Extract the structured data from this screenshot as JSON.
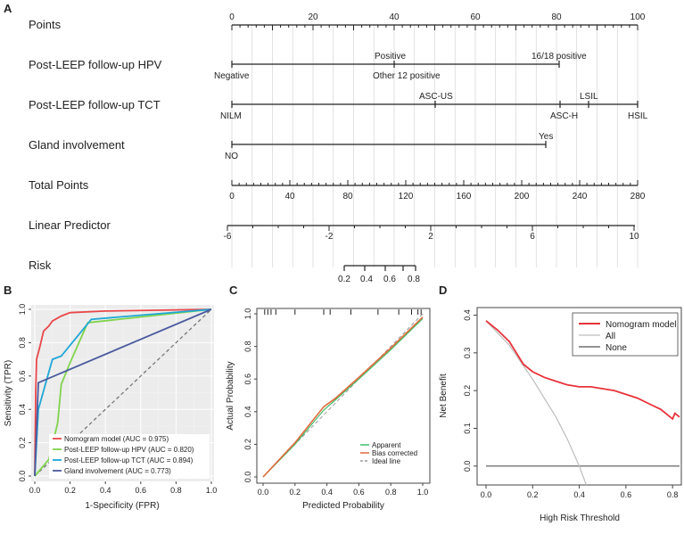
{
  "panel_labels": {
    "a": "A",
    "b": "B",
    "c": "C",
    "d": "D"
  },
  "nomogram": {
    "rows": {
      "points": "Points",
      "hpv": "Post-LEEP follow-up HPV",
      "tct": "Post-LEEP follow-up TCT",
      "gland": "Gland involvement",
      "total": "Total Points",
      "linear": "Linear Predictor",
      "risk": "Risk"
    },
    "points_ticks": [
      "0",
      "20",
      "40",
      "60",
      "80",
      "100"
    ],
    "hpv_labels": {
      "negative": "Negative",
      "positive": "Positive",
      "other12": "Other 12 positive",
      "hpv1618": "16/18 positive"
    },
    "tct_labels": {
      "nilm": "NILM",
      "ascus": "ASC-US",
      "asch": "ASC-H",
      "lsil": "LSIL",
      "hsil": "HSIL"
    },
    "gland_labels": {
      "no": "NO",
      "yes": "Yes"
    },
    "total_ticks": [
      "0",
      "40",
      "80",
      "120",
      "160",
      "200",
      "240",
      "280"
    ],
    "linear_ticks": [
      "-6",
      "-2",
      "2",
      "6",
      "10"
    ],
    "risk_ticks": [
      "0.2",
      "0.4",
      "0.6",
      "0.8"
    ]
  },
  "chart_data": [
    {
      "panel": "B",
      "type": "line",
      "xlabel": "1-Specificity (FPR)",
      "ylabel": "Sensitivity (TPR)",
      "xlim": [
        0,
        1
      ],
      "ylim": [
        0,
        1
      ],
      "xticks": [
        "0.0",
        "0.2",
        "0.4",
        "0.6",
        "0.8",
        "1.0"
      ],
      "yticks": [
        "0.0",
        "0.2",
        "0.4",
        "0.6",
        "0.8",
        "1.0"
      ],
      "legend_position": "bottom-right",
      "series": [
        {
          "name": "Nomogram model (AUC = 0.975)",
          "color": "#e8474a",
          "points": [
            [
              0,
              0
            ],
            [
              0.005,
              0.5
            ],
            [
              0.01,
              0.7
            ],
            [
              0.03,
              0.78
            ],
            [
              0.05,
              0.87
            ],
            [
              0.08,
              0.9
            ],
            [
              0.1,
              0.93
            ],
            [
              0.15,
              0.96
            ],
            [
              0.2,
              0.98
            ],
            [
              0.4,
              0.99
            ],
            [
              1,
              1
            ]
          ]
        },
        {
          "name": "Post-LEEP follow-up HPV (AUC = 0.820)",
          "color": "#7fd44c",
          "points": [
            [
              0,
              0
            ],
            [
              0.08,
              0.1
            ],
            [
              0.13,
              0.32
            ],
            [
              0.15,
              0.55
            ],
            [
              0.2,
              0.68
            ],
            [
              0.3,
              0.92
            ],
            [
              1,
              1
            ]
          ]
        },
        {
          "name": "Post-LEEP follow-up TCT (AUC = 0.894)",
          "color": "#1fa7d6",
          "points": [
            [
              0,
              0
            ],
            [
              0.02,
              0.4
            ],
            [
              0.1,
              0.7
            ],
            [
              0.15,
              0.72
            ],
            [
              0.32,
              0.94
            ],
            [
              1,
              1
            ]
          ]
        },
        {
          "name": "Gland involvement (AUC = 0.773)",
          "color": "#4a5a9e",
          "points": [
            [
              0,
              0
            ],
            [
              0.02,
              0.56
            ],
            [
              1,
              1
            ]
          ]
        }
      ],
      "reference_line": [
        [
          0,
          0
        ],
        [
          1,
          1
        ]
      ]
    },
    {
      "panel": "C",
      "type": "line",
      "xlabel": "Predicted Probability",
      "ylabel": "Actual Probability",
      "xlim": [
        0,
        1
      ],
      "ylim": [
        0,
        1
      ],
      "xticks": [
        "0.0",
        "0.2",
        "0.4",
        "0.6",
        "0.8",
        "1.0"
      ],
      "yticks": [
        "0.0",
        "0.2",
        "0.4",
        "0.6",
        "0.8",
        "1.0"
      ],
      "legend_position": "bottom-right",
      "series": [
        {
          "name": "Apparent",
          "color": "#3fbf6a",
          "points": [
            [
              0,
              0
            ],
            [
              0.2,
              0.2
            ],
            [
              0.38,
              0.41
            ],
            [
              0.45,
              0.47
            ],
            [
              0.6,
              0.6
            ],
            [
              0.8,
              0.78
            ],
            [
              1,
              0.97
            ]
          ]
        },
        {
          "name": "Bias corrected",
          "color": "#e06a3a",
          "points": [
            [
              0,
              0
            ],
            [
              0.2,
              0.21
            ],
            [
              0.38,
              0.43
            ],
            [
              0.45,
              0.48
            ],
            [
              0.6,
              0.61
            ],
            [
              0.8,
              0.79
            ],
            [
              1,
              0.98
            ]
          ]
        },
        {
          "name": "Ideal line",
          "color": "#999999",
          "points": [
            [
              0,
              0
            ],
            [
              1,
              1
            ]
          ]
        }
      ]
    },
    {
      "panel": "D",
      "type": "line",
      "xlabel": "High Risk Threshold",
      "ylabel": "Net Benefit",
      "xlim": [
        0,
        0.83
      ],
      "ylim": [
        -0.05,
        0.42
      ],
      "xticks": [
        "0.0",
        "0.2",
        "0.4",
        "0.6",
        "0.8"
      ],
      "yticks": [
        "0.0",
        "0.1",
        "0.2",
        "0.3",
        "0.4"
      ],
      "legend_position": "top-right",
      "series": [
        {
          "name": "Nomogram model",
          "color": "#e8333a",
          "points": [
            [
              0,
              0.385
            ],
            [
              0.05,
              0.36
            ],
            [
              0.1,
              0.33
            ],
            [
              0.13,
              0.3
            ],
            [
              0.16,
              0.27
            ],
            [
              0.2,
              0.25
            ],
            [
              0.25,
              0.235
            ],
            [
              0.3,
              0.225
            ],
            [
              0.35,
              0.215
            ],
            [
              0.4,
              0.21
            ],
            [
              0.45,
              0.21
            ],
            [
              0.5,
              0.205
            ],
            [
              0.55,
              0.2
            ],
            [
              0.6,
              0.19
            ],
            [
              0.65,
              0.18
            ],
            [
              0.7,
              0.165
            ],
            [
              0.75,
              0.15
            ],
            [
              0.8,
              0.125
            ],
            [
              0.81,
              0.14
            ],
            [
              0.83,
              0.13
            ]
          ]
        },
        {
          "name": "All",
          "color": "#bdbdbd",
          "points": [
            [
              0,
              0.385
            ],
            [
              0.1,
              0.32
            ],
            [
              0.2,
              0.23
            ],
            [
              0.3,
              0.13
            ],
            [
              0.35,
              0.07
            ],
            [
              0.4,
              0.0
            ],
            [
              0.43,
              -0.05
            ]
          ]
        },
        {
          "name": "None",
          "color": "#555555",
          "points": [
            [
              0,
              0
            ],
            [
              0.83,
              0
            ]
          ]
        }
      ]
    }
  ]
}
